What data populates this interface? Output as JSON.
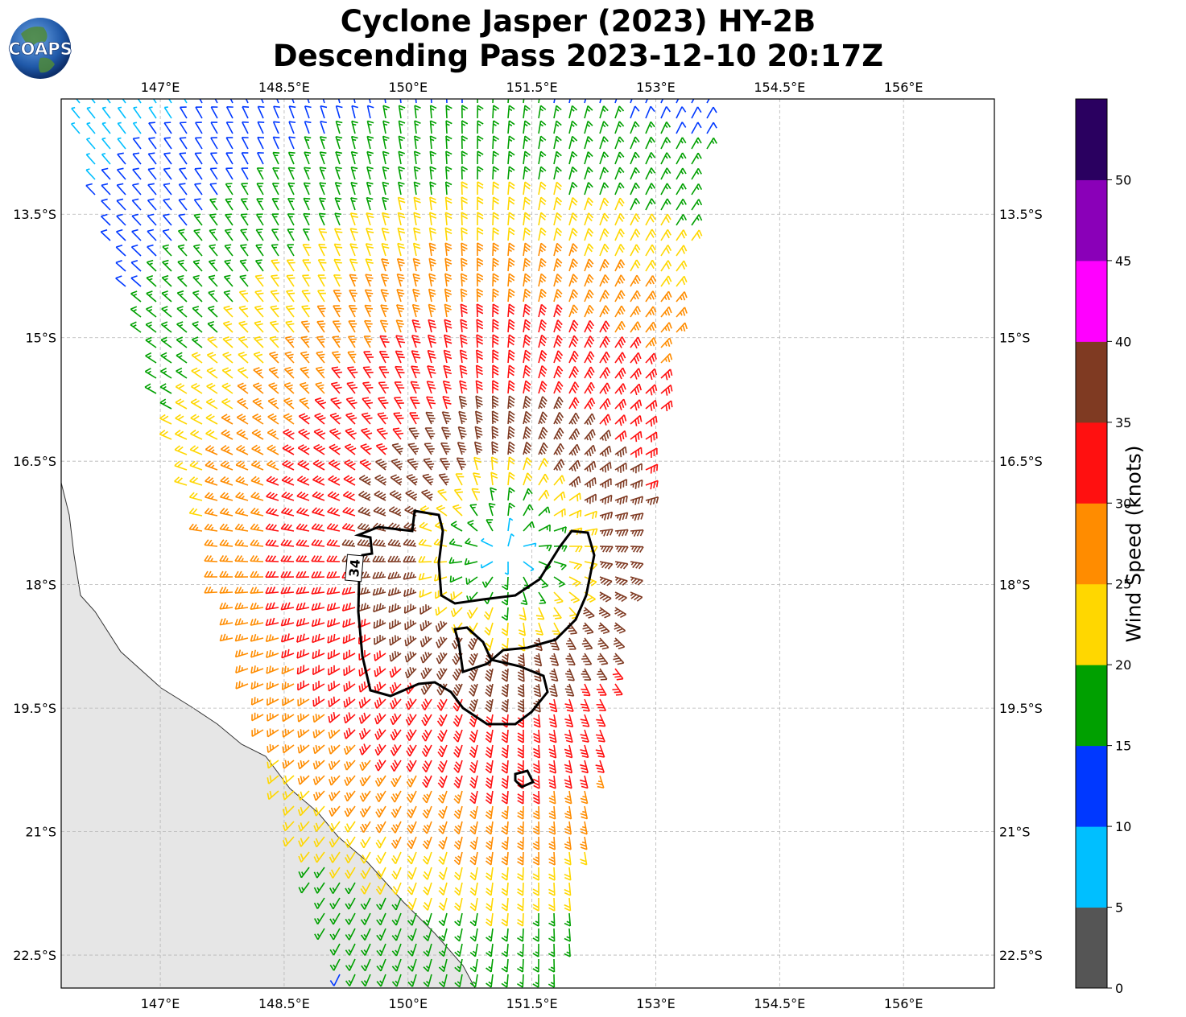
{
  "title_line1": "Cyclone Jasper (2023) HY-2B",
  "title_line2": "Descending Pass 2023-12-10 20:17Z",
  "logo_text": "COAPS",
  "map": {
    "x_ticks": [
      "147°E",
      "148.5°E",
      "150°E",
      "151.5°E",
      "153°E",
      "154.5°E",
      "156°E"
    ],
    "y_ticks": [
      "13.5°S",
      "15°S",
      "16.5°S",
      "18°S",
      "19.5°S",
      "21°S",
      "22.5°S"
    ],
    "contour_label": "34",
    "land_color": "#e6e6e6",
    "grid": true
  },
  "colorbar": {
    "label": "Wind Speed (knots)",
    "ticks": [
      "0",
      "5",
      "10",
      "15",
      "20",
      "25",
      "30",
      "35",
      "40",
      "45",
      "50"
    ],
    "colors": [
      "#555555",
      "#00bfff",
      "#0038ff",
      "#00a000",
      "#ffd700",
      "#ff8c00",
      "#ff1010",
      "#7f3a22",
      "#ff00ff",
      "#8a00b8",
      "#2a0060"
    ]
  },
  "chart_data": {
    "type": "scatter",
    "title": "Cyclone Jasper (2023) HY-2B",
    "subtitle": "Descending Pass 2023-12-10 20:17Z",
    "xlabel": "",
    "ylabel": "",
    "xlim": [
      145.8,
      157.1
    ],
    "ylim": [
      -22.9,
      -12.1
    ],
    "grid": true,
    "center": [
      151.2,
      -17.6
    ],
    "colorbar": {
      "label": "Wind Speed (knots)",
      "range": [
        0,
        55
      ],
      "step": 5
    },
    "contour": {
      "level": 34
    }
  }
}
